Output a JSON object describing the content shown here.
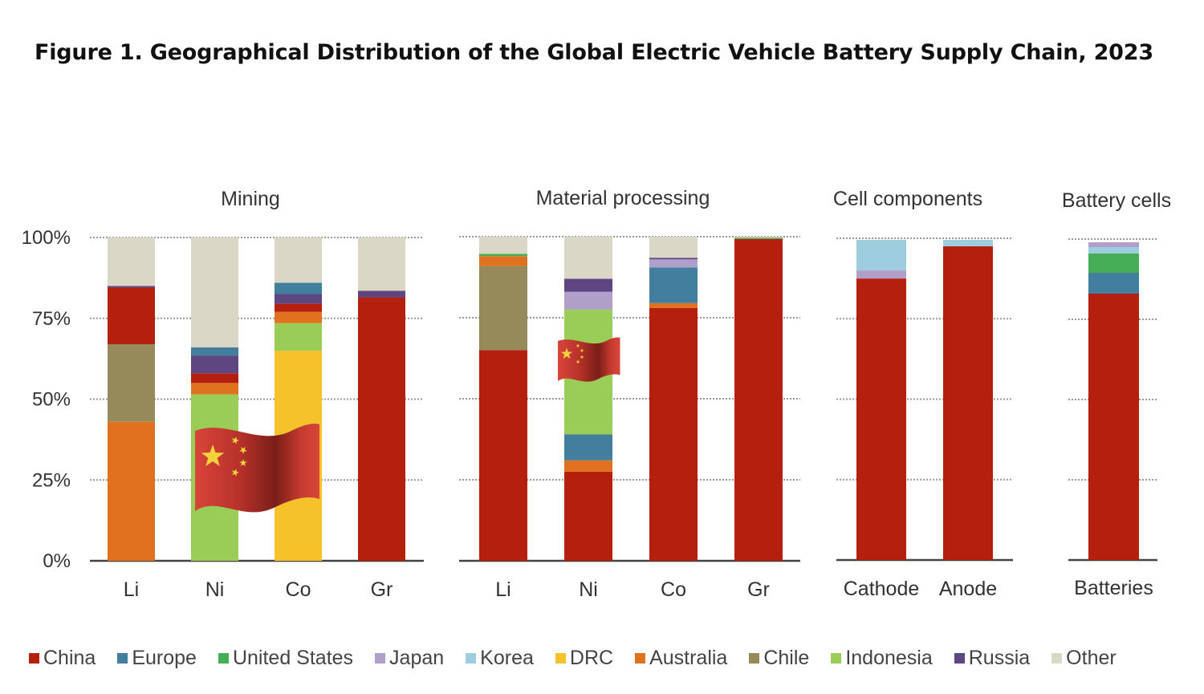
{
  "title": "Figure 1. Geographical Distribution of the Global Electric Vehicle Battery Supply Chain, 2023",
  "chart_data": {
    "type": "bar",
    "stacked": true,
    "title": "Figure 1. Geographical Distribution of the Global Electric Vehicle Battery Supply Chain, 2023",
    "ylabel": "",
    "ylim": [
      0,
      100
    ],
    "yticks": [
      "0%",
      "25%",
      "50%",
      "75%",
      "100%"
    ],
    "ytick_values": [
      0,
      25,
      50,
      75,
      100
    ],
    "grid": true,
    "legend_position": "bottom",
    "series_names": [
      "China",
      "Europe",
      "United States",
      "Japan",
      "Korea",
      "DRC",
      "Australia",
      "Chile",
      "Indonesia",
      "Russia",
      "Other"
    ],
    "colors": {
      "China": "#B5200E",
      "Europe": "#427F9E",
      "United States": "#46AE56",
      "Japan": "#B09FC9",
      "Korea": "#9FCDE0",
      "DRC": "#F6C22C",
      "Australia": "#E0711E",
      "Chile": "#968A5A",
      "Indonesia": "#9ACD58",
      "Russia": "#5E4683",
      "Other": "#DAD7C6"
    },
    "panels": [
      {
        "title": "Mining",
        "bars": [
          {
            "category": "Li",
            "segments": [
              [
                "Australia",
                43
              ],
              [
                "Chile",
                24
              ],
              [
                "China",
                17.5
              ],
              [
                "Russia",
                0.5
              ],
              [
                "Other",
                15
              ]
            ]
          },
          {
            "category": "Ni",
            "segments": [
              [
                "Indonesia",
                51.5
              ],
              [
                "Australia",
                3.5
              ],
              [
                "China",
                3
              ],
              [
                "Russia",
                5.5
              ],
              [
                "Europe",
                2.5
              ],
              [
                "Other",
                34
              ]
            ]
          },
          {
            "category": "Co",
            "segments": [
              [
                "DRC",
                65
              ],
              [
                "Indonesia",
                8.5
              ],
              [
                "Australia",
                3.5
              ],
              [
                "China",
                2.5
              ],
              [
                "Russia",
                3
              ],
              [
                "Europe",
                3.5
              ],
              [
                "Other",
                14
              ]
            ]
          },
          {
            "category": "Gr",
            "segments": [
              [
                "China",
                81.5
              ],
              [
                "Russia",
                2
              ],
              [
                "Other",
                16.5
              ]
            ]
          }
        ]
      },
      {
        "title": "Material processing",
        "bars": [
          {
            "category": "Li",
            "segments": [
              [
                "China",
                65
              ],
              [
                "Chile",
                26
              ],
              [
                "Australia",
                3
              ],
              [
                "United States",
                0.7
              ],
              [
                "Other",
                5.3
              ]
            ]
          },
          {
            "category": "Ni",
            "segments": [
              [
                "China",
                27.5
              ],
              [
                "Australia",
                3.5
              ],
              [
                "Europe",
                8
              ],
              [
                "Indonesia",
                38.5
              ],
              [
                "Japan",
                5.5
              ],
              [
                "Russia",
                4
              ],
              [
                "Other",
                13
              ]
            ]
          },
          {
            "category": "Co",
            "segments": [
              [
                "China",
                78
              ],
              [
                "Australia",
                1.5
              ],
              [
                "Europe",
                11
              ],
              [
                "Japan",
                2.5
              ],
              [
                "Russia",
                0.5
              ],
              [
                "Other",
                6.5
              ]
            ]
          },
          {
            "category": "Gr",
            "segments": [
              [
                "China",
                99.3
              ],
              [
                "United States",
                0.4
              ],
              [
                "Other",
                0.3
              ]
            ]
          }
        ]
      },
      {
        "title": "Cell components",
        "bars": [
          {
            "category": "Cathode",
            "segments": [
              [
                "China",
                87.5
              ],
              [
                "Japan",
                2.5
              ],
              [
                "Korea",
                9.5
              ]
            ]
          },
          {
            "category": "Anode",
            "segments": [
              [
                "China",
                97.5
              ],
              [
                "Korea",
                2
              ]
            ]
          }
        ]
      },
      {
        "title": "Battery cells",
        "bars": [
          {
            "category": "Batteries",
            "segments": [
              [
                "China",
                83
              ],
              [
                "Europe",
                6.5
              ],
              [
                "United States",
                6
              ],
              [
                "Korea",
                2
              ],
              [
                "Japan",
                1.5
              ]
            ]
          }
        ]
      }
    ],
    "annotations": [
      "china-flag-mining",
      "china-flag-processing"
    ]
  }
}
